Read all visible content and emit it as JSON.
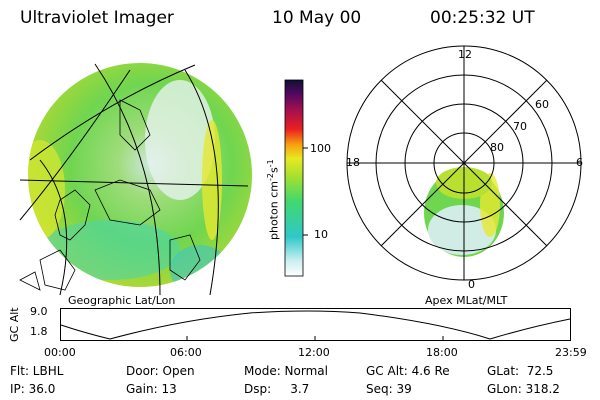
{
  "header": {
    "title": "Ultraviolet Imager",
    "date": "10 May 00",
    "time": "00:25:32 UT"
  },
  "colorbar": {
    "unit": "photon cm",
    "unit_exp1": "-2",
    "unit_s": "s",
    "unit_exp2": "-1",
    "tick_high": "100",
    "tick_low": "10"
  },
  "panels": {
    "left_label": "Geographic Lat/Lon",
    "right_label": "Apex MLat/MLT"
  },
  "polar_plot": {
    "mlt_top": "12",
    "mlt_left": "18",
    "mlt_right": "6",
    "mlt_bottom": "0",
    "lat_60": "60",
    "lat_70": "70",
    "lat_80": "80"
  },
  "altitude_plot": {
    "ylabel": "GC Alt",
    "ytick_high": "9.0",
    "ytick_low": "1.8",
    "xticks": [
      "00:00",
      "06:00",
      "12:00",
      "18:00",
      "23:59"
    ]
  },
  "status": {
    "flt": "Flt: LBHL",
    "ip": "IP: 36.0",
    "door": "Door: Open",
    "gain": "Gain: 13",
    "mode": "Mode: Normal",
    "dsp": "Dsp:     3.7",
    "gcalt": "GC Alt: 4.6 Re",
    "seq": "Seq: 39",
    "glat": "GLat:  72.5",
    "glon": "GLon: 318.2"
  }
}
